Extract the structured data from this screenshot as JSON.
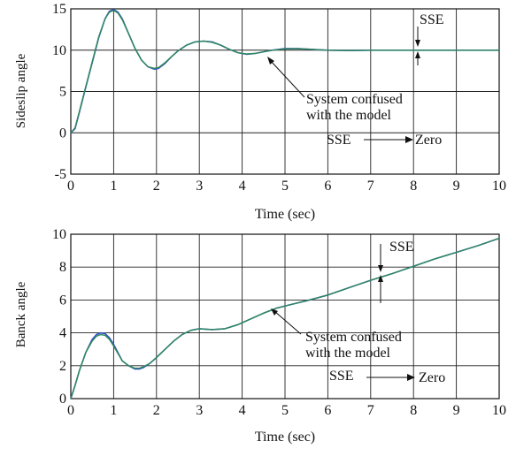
{
  "chart_data": [
    {
      "type": "line",
      "title": "",
      "xlabel": "Time (sec)",
      "ylabel": "Sideslip angle",
      "xlim": [
        0,
        10
      ],
      "ylim": [
        -5,
        15
      ],
      "xticks": [
        "0",
        "1",
        "2",
        "3",
        "4",
        "5",
        "6",
        "7",
        "8",
        "9",
        "10"
      ],
      "yticks": [
        "-5",
        "0",
        "5",
        "10",
        "15"
      ],
      "grid": true,
      "series": [
        {
          "color": "#3050c8",
          "x": [
            0,
            0.1,
            0.2,
            0.35,
            0.5,
            0.65,
            0.8,
            0.9,
            1.0,
            1.1,
            1.2,
            1.35,
            1.5,
            1.65,
            1.8,
            1.95,
            2.05,
            2.2,
            2.35,
            2.5,
            2.7,
            2.9,
            3.1,
            3.3,
            3.5,
            3.7,
            3.9,
            4.1,
            4.3,
            4.5,
            4.7,
            5.0,
            5.3,
            5.6,
            6.0,
            6.5,
            7.0,
            7.5,
            8.0,
            8.5,
            9.0,
            9.5,
            10.0
          ],
          "y": [
            0,
            0.5,
            2.5,
            5.5,
            8.5,
            11.5,
            13.8,
            14.7,
            14.9,
            14.6,
            13.8,
            12.0,
            10.2,
            8.8,
            8.0,
            7.7,
            7.8,
            8.4,
            9.2,
            9.9,
            10.6,
            11.0,
            11.1,
            11.0,
            10.6,
            10.1,
            9.7,
            9.5,
            9.6,
            9.8,
            10.0,
            10.2,
            10.2,
            10.1,
            10.0,
            9.95,
            10.0,
            10.0,
            10.0,
            10.0,
            10.0,
            10.0,
            10.0
          ]
        },
        {
          "color": "#2f8a5a",
          "x": [
            0,
            0.1,
            0.2,
            0.35,
            0.5,
            0.65,
            0.8,
            0.9,
            1.0,
            1.1,
            1.2,
            1.35,
            1.5,
            1.65,
            1.8,
            1.95,
            2.05,
            2.2,
            2.35,
            2.5,
            2.7,
            2.9,
            3.1,
            3.3,
            3.5,
            3.7,
            3.9,
            4.1,
            4.3,
            4.5,
            4.7,
            5.0,
            5.3,
            5.6,
            6.0,
            6.5,
            7.0,
            7.5,
            8.0,
            8.5,
            9.0,
            9.5,
            10.0
          ],
          "y": [
            0,
            0.6,
            2.6,
            5.6,
            8.6,
            11.6,
            13.8,
            14.6,
            14.8,
            14.5,
            13.7,
            12.0,
            10.2,
            8.8,
            8.0,
            7.8,
            7.9,
            8.5,
            9.2,
            9.9,
            10.6,
            11.0,
            11.1,
            10.95,
            10.6,
            10.1,
            9.7,
            9.55,
            9.6,
            9.8,
            10.0,
            10.15,
            10.2,
            10.1,
            10.0,
            9.95,
            10.0,
            10.0,
            10.0,
            10.0,
            10.0,
            10.0,
            10.0
          ]
        }
      ],
      "annotations": [
        "SSE",
        "System confused",
        "with the model",
        "SSE",
        "Zero"
      ]
    },
    {
      "type": "line",
      "title": "",
      "xlabel": "Time (sec)",
      "ylabel": "Banck angle",
      "xlim": [
        0,
        10
      ],
      "ylim": [
        0,
        10
      ],
      "xticks": [
        "0",
        "1",
        "2",
        "3",
        "4",
        "5",
        "6",
        "7",
        "8",
        "9",
        "10"
      ],
      "yticks": [
        "0",
        "2",
        "4",
        "6",
        "8",
        "10"
      ],
      "grid": true,
      "series": [
        {
          "color": "#3050c8",
          "x": [
            0,
            0.1,
            0.2,
            0.35,
            0.5,
            0.6,
            0.7,
            0.8,
            0.9,
            1.0,
            1.1,
            1.2,
            1.35,
            1.5,
            1.6,
            1.7,
            1.85,
            2.0,
            2.2,
            2.4,
            2.6,
            2.8,
            3.0,
            3.3,
            3.6,
            3.9,
            4.2,
            4.5,
            4.8,
            5.1,
            5.5,
            6.0,
            6.5,
            7.0,
            7.5,
            8.0,
            8.5,
            9.0,
            9.5,
            10.0
          ],
          "y": [
            0,
            0.8,
            1.7,
            2.8,
            3.6,
            3.9,
            4.0,
            3.95,
            3.7,
            3.3,
            2.8,
            2.3,
            2.0,
            1.8,
            1.8,
            1.9,
            2.15,
            2.5,
            3.0,
            3.5,
            3.9,
            4.15,
            4.25,
            4.2,
            4.25,
            4.5,
            4.85,
            5.2,
            5.5,
            5.7,
            5.95,
            6.3,
            6.75,
            7.2,
            7.6,
            8.05,
            8.5,
            8.9,
            9.3,
            9.75
          ]
        },
        {
          "color": "#2f8a5a",
          "x": [
            0,
            0.1,
            0.2,
            0.35,
            0.5,
            0.6,
            0.7,
            0.8,
            0.9,
            1.0,
            1.1,
            1.2,
            1.35,
            1.5,
            1.6,
            1.7,
            1.85,
            2.0,
            2.2,
            2.4,
            2.6,
            2.8,
            3.0,
            3.3,
            3.6,
            3.9,
            4.2,
            4.5,
            4.8,
            5.1,
            5.5,
            6.0,
            6.5,
            7.0,
            7.5,
            8.0,
            8.5,
            9.0,
            9.5,
            10.0
          ],
          "y": [
            0,
            0.8,
            1.7,
            2.8,
            3.5,
            3.8,
            3.9,
            3.85,
            3.6,
            3.2,
            2.75,
            2.3,
            2.0,
            1.85,
            1.85,
            1.95,
            2.15,
            2.5,
            3.0,
            3.5,
            3.9,
            4.15,
            4.25,
            4.2,
            4.25,
            4.5,
            4.85,
            5.2,
            5.5,
            5.7,
            5.95,
            6.3,
            6.75,
            7.2,
            7.6,
            8.05,
            8.5,
            8.9,
            9.3,
            9.75
          ]
        }
      ],
      "annotations": [
        "SSE",
        "System confused",
        "with the model",
        "SSE",
        "Zero"
      ]
    }
  ]
}
